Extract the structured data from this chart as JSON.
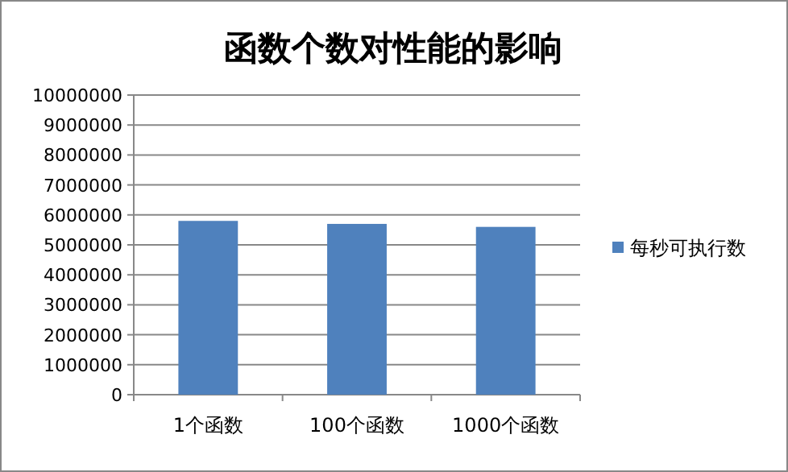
{
  "chart_data": {
    "type": "bar",
    "title": "函数个数对性能的影响",
    "categories": [
      "1个函数",
      "100个函数",
      "1000个函数"
    ],
    "series": [
      {
        "name": "每秒可执行数",
        "color": "#4f81bd",
        "values": [
          5800000,
          5700000,
          5600000
        ]
      }
    ],
    "ylim": [
      0,
      10000000
    ],
    "yticks": [
      0,
      1000000,
      2000000,
      3000000,
      4000000,
      5000000,
      6000000,
      7000000,
      8000000,
      9000000,
      10000000
    ],
    "grid": "y",
    "legend": "right"
  }
}
